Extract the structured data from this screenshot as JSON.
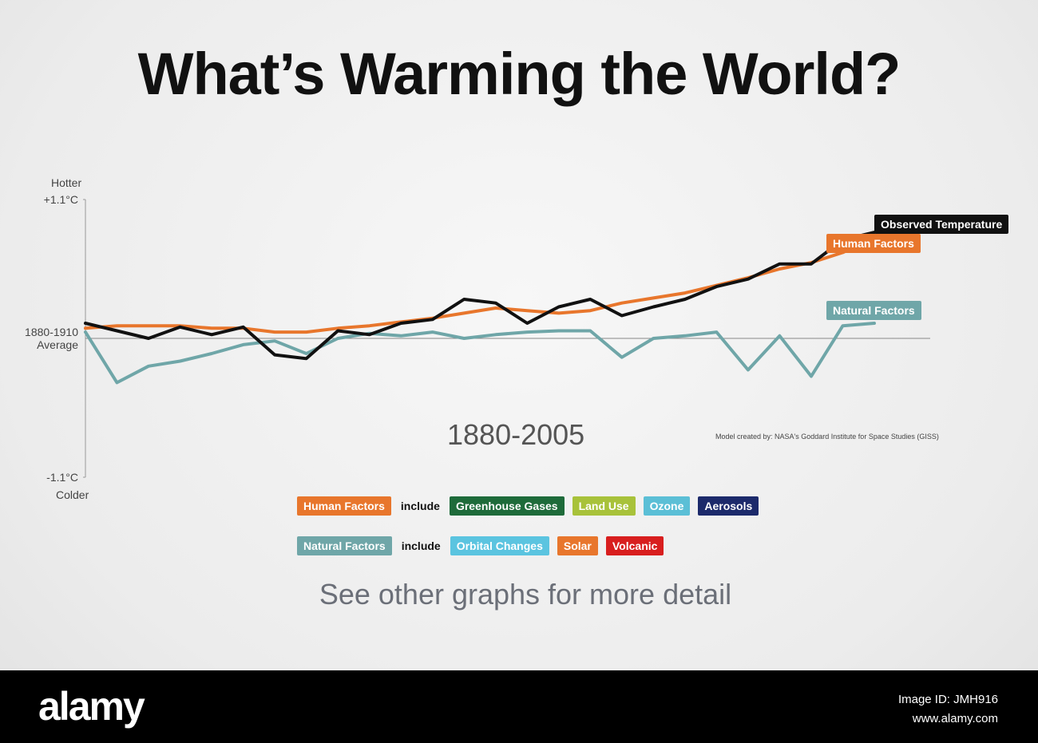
{
  "chart_data": {
    "type": "line",
    "title": "What’s Warming the World?",
    "subtitle": "1880-2005",
    "credit": "Model created by: NASA's Goddard Institute for Space Studies (GISS)",
    "y_top_label": "Hotter",
    "y_bottom_label": "Colder",
    "x": [
      1880,
      1885,
      1890,
      1895,
      1900,
      1905,
      1910,
      1915,
      1920,
      1925,
      1930,
      1935,
      1940,
      1945,
      1950,
      1955,
      1960,
      1965,
      1970,
      1975,
      1980,
      1985,
      1990,
      1995,
      2000,
      2005
    ],
    "xlim": [
      1880,
      2005
    ],
    "ylim": [
      -1.1,
      1.1
    ],
    "yticks": [
      {
        "value": 1.1,
        "label": "+1.1°C"
      },
      {
        "value": 0,
        "label": "1880-1910 Average"
      },
      {
        "value": -1.1,
        "label": "-1.1°C"
      }
    ],
    "series": [
      {
        "name": "Natural Factors",
        "color": "#6fa6a8",
        "values": [
          0.05,
          -0.35,
          -0.22,
          -0.18,
          -0.12,
          -0.05,
          -0.02,
          -0.12,
          0.0,
          0.04,
          0.02,
          0.05,
          0.0,
          0.03,
          0.05,
          0.06,
          0.06,
          -0.15,
          0.0,
          0.02,
          0.05,
          -0.25,
          0.02,
          -0.3,
          0.1,
          0.12
        ]
      },
      {
        "name": "Human Factors",
        "color": "#e8762c",
        "values": [
          0.08,
          0.1,
          0.1,
          0.1,
          0.08,
          0.08,
          0.05,
          0.05,
          0.08,
          0.1,
          0.13,
          0.16,
          0.2,
          0.24,
          0.22,
          0.2,
          0.22,
          0.28,
          0.32,
          0.36,
          0.42,
          0.48,
          0.55,
          0.6,
          0.68,
          0.8
        ]
      },
      {
        "name": "Observed Temperature",
        "color": "#111111",
        "values": [
          0.12,
          0.06,
          0.0,
          0.09,
          0.03,
          0.09,
          -0.13,
          -0.16,
          0.06,
          0.03,
          0.12,
          0.15,
          0.31,
          0.28,
          0.12,
          0.25,
          0.31,
          0.18,
          0.25,
          0.31,
          0.41,
          0.47,
          0.59,
          0.59,
          0.78,
          0.84
        ]
      }
    ],
    "factor_groups": [
      {
        "name": "Human Factors",
        "color": "#e8762c",
        "include_label": "include",
        "items": [
          {
            "name": "Greenhouse Gases",
            "color": "#1e6b3a"
          },
          {
            "name": "Land Use",
            "color": "#a8c23a"
          },
          {
            "name": "Ozone",
            "color": "#5bbfd6"
          },
          {
            "name": "Aerosols",
            "color": "#1c2a6b"
          }
        ]
      },
      {
        "name": "Natural Factors",
        "color": "#6fa6a8",
        "include_label": "include",
        "items": [
          {
            "name": "Orbital Changes",
            "color": "#5bc4e0"
          },
          {
            "name": "Solar",
            "color": "#e8762c"
          },
          {
            "name": "Volcanic",
            "color": "#d81e1e"
          }
        ]
      }
    ],
    "note": "See other graphs for more detail"
  },
  "watermark": {
    "brand": "alamy",
    "image_id": "Image ID: JMH916",
    "url": "www.alamy.com"
  }
}
